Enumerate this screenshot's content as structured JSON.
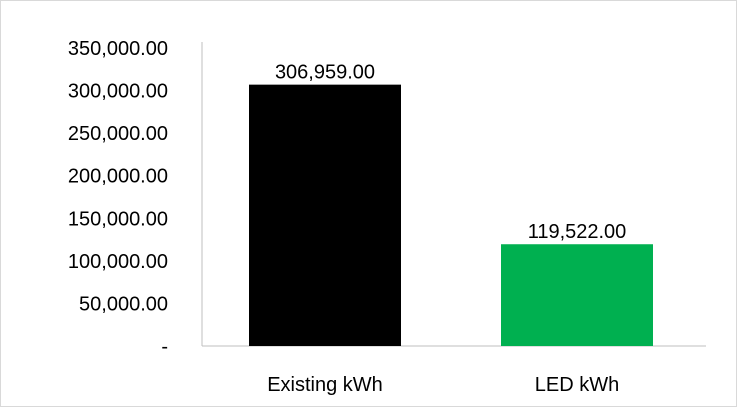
{
  "chart_data": {
    "type": "bar",
    "categories": [
      "Existing kWh",
      "LED kWh"
    ],
    "values": [
      306959.0,
      119522.0
    ],
    "data_labels": [
      "306,959.00",
      "119,522.00"
    ],
    "bar_colors": [
      "#000000",
      "#00b050"
    ],
    "ylim": [
      0,
      350000
    ],
    "yticks": [
      0,
      50000,
      100000,
      150000,
      200000,
      250000,
      300000,
      350000
    ],
    "ytick_labels": [
      "-",
      "50,000.00",
      "100,000.00",
      "150,000.00",
      "200,000.00",
      "250,000.00",
      "300,000.00",
      "350,000.00"
    ],
    "grid": false,
    "legend": "none"
  }
}
